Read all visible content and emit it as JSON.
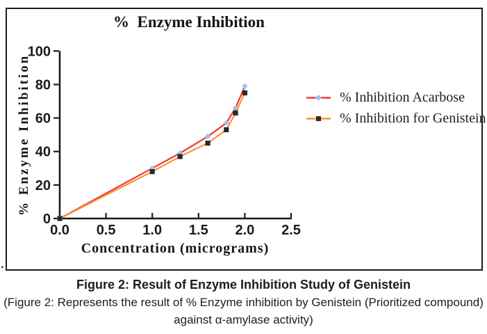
{
  "chart_data": {
    "type": "line",
    "title": "%  Enzyme Inhibition",
    "xlabel": "Concentration (micrograms)",
    "ylabel": "% Enzyme Inhibition",
    "x": [
      0,
      1.0,
      1.3,
      1.6,
      1.8,
      1.9,
      2.0
    ],
    "series": [
      {
        "name": "% Inhibition Acarbose",
        "values": [
          0,
          30,
          39,
          49,
          57,
          66,
          79
        ],
        "color": "#EC3B33",
        "marker": "diamond",
        "marker_color": "#A0C4EE"
      },
      {
        "name": "% Inhibition for Genistein",
        "values": [
          0,
          28,
          37,
          45,
          53,
          63,
          75
        ],
        "color": "#F79333",
        "marker": "square",
        "marker_color": "#2B2A2A"
      }
    ],
    "xlim": [
      0,
      2.5
    ],
    "ylim": [
      0,
      100
    ],
    "xticks": [
      "0.0",
      "0.5",
      "1.0",
      "1.5",
      "2.0",
      "2.5"
    ],
    "yticks": [
      0,
      20,
      40,
      60,
      80,
      100
    ],
    "grid": false,
    "legend_position": "right",
    "axis_color": "#1b1b1b"
  },
  "caption": {
    "title": "Figure 2: Result of Enzyme Inhibition Study of Genistein",
    "line2": "(Figure 2: Represents the result of % Enzyme inhibition by Genistein (Prioritized compound)",
    "line3": "against α-amylase activity)"
  },
  "stray_mark": "."
}
